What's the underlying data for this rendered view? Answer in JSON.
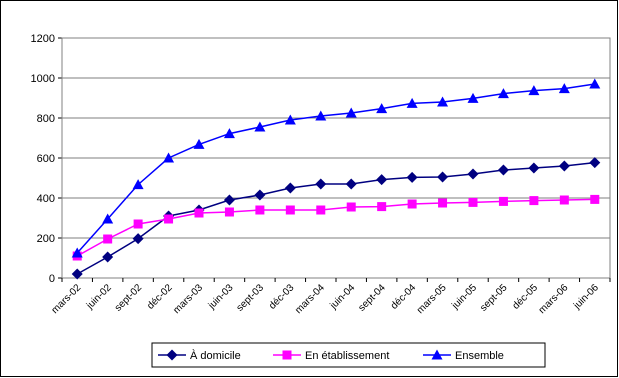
{
  "chart_data": {
    "type": "line",
    "categories": [
      "mars-02",
      "juin-02",
      "sept-02",
      "déc-02",
      "mars-03",
      "juin-03",
      "sept-03",
      "déc-03",
      "mars-04",
      "juin-04",
      "sept-04",
      "déc-04",
      "mars-05",
      "juin-05",
      "sept-05",
      "déc-05",
      "mars-06",
      "juin-06"
    ],
    "series": [
      {
        "name": "À domicile",
        "color": "#000080",
        "marker": "diamond",
        "values": [
          20,
          105,
          197,
          310,
          340,
          390,
          415,
          450,
          470,
          470,
          492,
          503,
          505,
          520,
          540,
          550,
          560,
          577
        ]
      },
      {
        "name": "En établissement",
        "color": "#ff00ff",
        "marker": "square",
        "values": [
          110,
          195,
          270,
          295,
          325,
          330,
          340,
          340,
          340,
          355,
          357,
          370,
          375,
          378,
          383,
          387,
          390,
          393
        ]
      },
      {
        "name": "Ensemble",
        "color": "#0000ff",
        "marker": "triangle",
        "values": [
          125,
          295,
          467,
          600,
          668,
          722,
          755,
          790,
          810,
          825,
          847,
          873,
          880,
          898,
          922,
          937,
          947,
          970
        ]
      }
    ],
    "ylim": [
      0,
      1200
    ],
    "yticks": [
      0,
      200,
      400,
      600,
      800,
      1000,
      1200
    ],
    "grid": true,
    "legend": "bottom"
  }
}
